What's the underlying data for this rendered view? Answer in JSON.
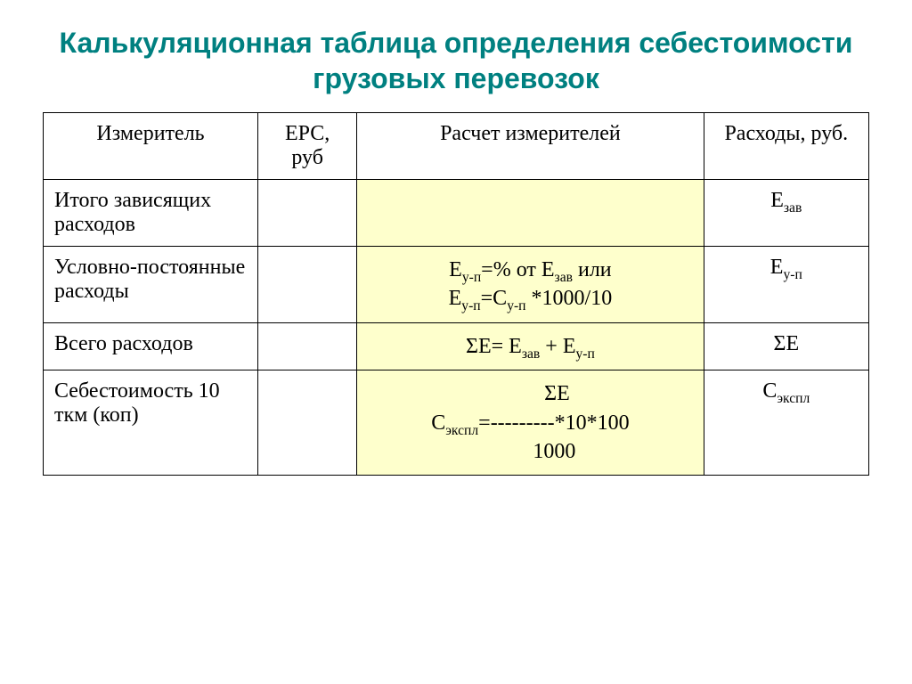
{
  "title": "Калькуляционная таблица определения себестоимости грузовых перевозок",
  "table": {
    "headers": {
      "meter": "Измеритель",
      "erc": "ЕРС, руб",
      "calc": "Расчет измерителей",
      "expenses": "Расходы, руб."
    },
    "highlight_color": "#feffcc",
    "border_color": "#000000",
    "title_color": "#008080",
    "text_color": "#000000",
    "font_size_body": 24,
    "font_size_title": 32,
    "col_widths_pct": [
      26,
      12,
      42,
      20
    ],
    "rows": [
      {
        "meter": "Итого зависящих расходов",
        "erc": "",
        "calc_html": "",
        "exp_html": "Е<sub>зав</sub>"
      },
      {
        "meter": "Условно-постоянные расходы",
        "erc": "",
        "calc_html": "Е<sub>у-п</sub>=% от Е<sub>зав</sub> или<br>Е<sub>у-п</sub>=С<sub>у-п</sub> *1000/10",
        "exp_html": "Е<sub>у-п</sub>"
      },
      {
        "meter": "Всего расходов",
        "erc": "",
        "calc_html": "ΣЕ= Е<sub>зав</sub> + Е<sub>у-п</sub>",
        "exp_html": "ΣЕ"
      },
      {
        "meter": "Себестоимость 10 ткм (коп)",
        "erc": "",
        "calc_html": "&nbsp;&nbsp;&nbsp;&nbsp;&nbsp;&nbsp;&nbsp;&nbsp;&nbsp;&nbsp;ΣЕ<br>С<sub>экспл</sub>=---------*10*100<br>&nbsp;&nbsp;&nbsp;&nbsp;&nbsp;&nbsp;&nbsp;&nbsp;&nbsp;1000",
        "exp_html": "С<sub>экспл</sub>"
      }
    ]
  }
}
